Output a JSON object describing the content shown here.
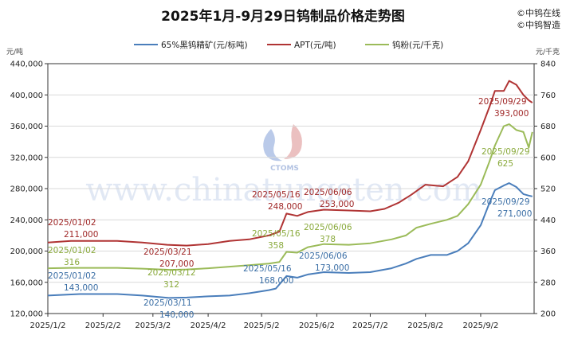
{
  "title": "2025年1月-9月29日钨制品价格走势图",
  "brand": [
    "©中钨在线",
    "©中钨智造"
  ],
  "watermark": {
    "url": "www.chinatungsten.com",
    "logo_text": "CTOMS"
  },
  "chart_data": {
    "type": "line",
    "title": "2025年1月-9月29日钨制品价格走势图",
    "y_left_unit": "元/吨",
    "y_right_unit": "元/千克",
    "ylim_left": [
      120000,
      440000
    ],
    "ylim_right": [
      200,
      840
    ],
    "yticks_left": [
      "440,000",
      "400,000",
      "360,000",
      "320,000",
      "280,000",
      "240,000",
      "200,000",
      "160,000",
      "120,000"
    ],
    "yticks_right": [
      "840",
      "760",
      "680",
      "600",
      "520",
      "440",
      "360",
      "280",
      "200"
    ],
    "xticks": [
      "2025/1/2",
      "2025/2/2",
      "2025/3/2",
      "2025/4/2",
      "2025/5/2",
      "2025/6/2",
      "2025/7/2",
      "2025/8/2",
      "2025/9/2"
    ],
    "xlim": [
      "2025/1/2",
      "2025/10/2"
    ],
    "legend_position": "top-center",
    "series": [
      {
        "name": "65%黑钨精矿(元/标吨)",
        "axis": "left",
        "color": "#4a7ebb",
        "points": [
          [
            "2025/1/2",
            143000
          ],
          [
            "2025/1/20",
            145000
          ],
          [
            "2025/2/10",
            145000
          ],
          [
            "2025/2/24",
            143000
          ],
          [
            "2025/3/11",
            140000
          ],
          [
            "2025/3/21",
            140500
          ],
          [
            "2025/4/2",
            142000
          ],
          [
            "2025/4/14",
            143000
          ],
          [
            "2025/4/25",
            146000
          ],
          [
            "2025/5/6",
            150000
          ],
          [
            "2025/5/10",
            152000
          ],
          [
            "2025/5/16",
            168000
          ],
          [
            "2025/5/22",
            166000
          ],
          [
            "2025/5/28",
            170000
          ],
          [
            "2025/6/6",
            173000
          ],
          [
            "2025/6/20",
            172000
          ],
          [
            "2025/7/2",
            173000
          ],
          [
            "2025/7/14",
            178000
          ],
          [
            "2025/7/22",
            184000
          ],
          [
            "2025/7/28",
            190000
          ],
          [
            "2025/8/5",
            195000
          ],
          [
            "2025/8/14",
            195000
          ],
          [
            "2025/8/20",
            200000
          ],
          [
            "2025/8/26",
            210000
          ],
          [
            "2025/9/2",
            233000
          ],
          [
            "2025/9/7",
            262000
          ],
          [
            "2025/9/10",
            278000
          ],
          [
            "2025/9/15",
            284000
          ],
          [
            "2025/9/18",
            287000
          ],
          [
            "2025/9/22",
            282000
          ],
          [
            "2025/9/26",
            273000
          ],
          [
            "2025/9/29",
            271000
          ],
          [
            "2025/10/1",
            270000
          ]
        ]
      },
      {
        "name": "APT(元/吨)",
        "axis": "left",
        "color": "#b03434",
        "points": [
          [
            "2025/1/2",
            211000
          ],
          [
            "2025/1/15",
            213000
          ],
          [
            "2025/2/10",
            213000
          ],
          [
            "2025/2/24",
            211000
          ],
          [
            "2025/3/10",
            208000
          ],
          [
            "2025/3/21",
            207000
          ],
          [
            "2025/4/2",
            209000
          ],
          [
            "2025/4/14",
            213000
          ],
          [
            "2025/4/25",
            215000
          ],
          [
            "2025/5/6",
            220000
          ],
          [
            "2025/5/12",
            225000
          ],
          [
            "2025/5/16",
            248000
          ],
          [
            "2025/5/22",
            245000
          ],
          [
            "2025/5/28",
            250000
          ],
          [
            "2025/6/6",
            253000
          ],
          [
            "2025/6/20",
            252000
          ],
          [
            "2025/7/2",
            251000
          ],
          [
            "2025/7/10",
            254000
          ],
          [
            "2025/7/18",
            262000
          ],
          [
            "2025/7/25",
            272000
          ],
          [
            "2025/8/2",
            285000
          ],
          [
            "2025/8/12",
            283000
          ],
          [
            "2025/8/20",
            295000
          ],
          [
            "2025/8/26",
            315000
          ],
          [
            "2025/9/2",
            355000
          ],
          [
            "2025/9/7",
            385000
          ],
          [
            "2025/9/10",
            405000
          ],
          [
            "2025/9/15",
            405000
          ],
          [
            "2025/9/18",
            418000
          ],
          [
            "2025/9/22",
            413000
          ],
          [
            "2025/9/26",
            400000
          ],
          [
            "2025/9/29",
            393000
          ],
          [
            "2025/10/1",
            390000
          ]
        ]
      },
      {
        "name": "钨粉(元/千克)",
        "axis": "right",
        "color": "#9bbb59",
        "points": [
          [
            "2025/1/2",
            316
          ],
          [
            "2025/1/15",
            317
          ],
          [
            "2025/2/10",
            317
          ],
          [
            "2025/2/24",
            315
          ],
          [
            "2025/3/12",
            312
          ],
          [
            "2025/3/21",
            313
          ],
          [
            "2025/4/2",
            316
          ],
          [
            "2025/4/14",
            320
          ],
          [
            "2025/4/25",
            324
          ],
          [
            "2025/5/6",
            328
          ],
          [
            "2025/5/12",
            332
          ],
          [
            "2025/5/16",
            358
          ],
          [
            "2025/5/22",
            356
          ],
          [
            "2025/5/28",
            370
          ],
          [
            "2025/6/6",
            378
          ],
          [
            "2025/6/20",
            376
          ],
          [
            "2025/7/2",
            380
          ],
          [
            "2025/7/14",
            390
          ],
          [
            "2025/7/22",
            400
          ],
          [
            "2025/7/28",
            420
          ],
          [
            "2025/8/5",
            430
          ],
          [
            "2025/8/14",
            440
          ],
          [
            "2025/8/20",
            450
          ],
          [
            "2025/8/26",
            480
          ],
          [
            "2025/9/2",
            530
          ],
          [
            "2025/9/7",
            590
          ],
          [
            "2025/9/10",
            630
          ],
          [
            "2025/9/15",
            680
          ],
          [
            "2025/9/18",
            685
          ],
          [
            "2025/9/22",
            670
          ],
          [
            "2025/9/26",
            665
          ],
          [
            "2025/9/29",
            625
          ],
          [
            "2025/10/1",
            665
          ]
        ]
      }
    ],
    "annotations": [
      {
        "series": 0,
        "date": "2025/01/02",
        "value": "143,000"
      },
      {
        "series": 0,
        "date": "2025/03/11",
        "value": "140,000"
      },
      {
        "series": 0,
        "date": "2025/05/16",
        "value": "168,000"
      },
      {
        "series": 0,
        "date": "2025/06/06",
        "value": "173,000"
      },
      {
        "series": 0,
        "date": "2025/09/29",
        "value": "271,000"
      },
      {
        "series": 1,
        "date": "2025/01/02",
        "value": "211,000"
      },
      {
        "series": 1,
        "date": "2025/03/21",
        "value": "207,000"
      },
      {
        "series": 1,
        "date": "2025/05/16",
        "value": "248,000"
      },
      {
        "series": 1,
        "date": "2025/06/06",
        "value": "253,000"
      },
      {
        "series": 1,
        "date": "2025/09/29",
        "value": "393,000"
      },
      {
        "series": 2,
        "date": "2025/01/02",
        "value": "316"
      },
      {
        "series": 2,
        "date": "2025/03/12",
        "value": "312"
      },
      {
        "series": 2,
        "date": "2025/05/16",
        "value": "358"
      },
      {
        "series": 2,
        "date": "2025/06/06",
        "value": "378"
      },
      {
        "series": 2,
        "date": "2025/09/29",
        "value": "625"
      }
    ],
    "annotation_colors": [
      "#3a6ea5",
      "#a02828",
      "#8aaa3c"
    ]
  }
}
